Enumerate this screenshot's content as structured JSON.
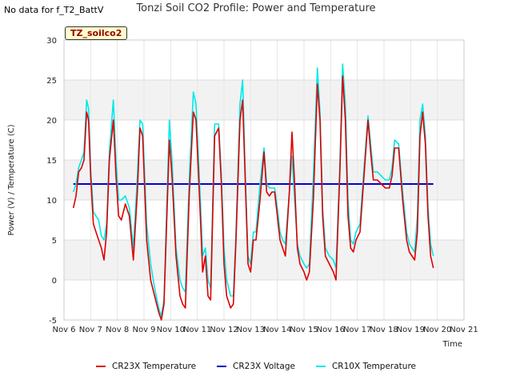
{
  "note": "No data for f_T2_BattV",
  "chart_data": {
    "type": "line",
    "title": "Tonzi Soil CO2 Profile: Power and Temperature",
    "xlabel": "Time",
    "ylabel": "Power (V) / Temperature (C)",
    "site_label": "TZ_soilco2",
    "xlim": [
      6,
      21
    ],
    "ylim": [
      -5,
      30
    ],
    "yticks": [
      -5,
      0,
      5,
      10,
      15,
      20,
      25,
      30
    ],
    "xticks": [
      {
        "v": 6,
        "label": "Nov 6"
      },
      {
        "v": 7,
        "label": "Nov 7"
      },
      {
        "v": 8,
        "label": "Nov 8"
      },
      {
        "v": 9,
        "label": "Nov 9"
      },
      {
        "v": 10,
        "label": "Nov 10"
      },
      {
        "v": 11,
        "label": "Nov 11"
      },
      {
        "v": 12,
        "label": "Nov 12"
      },
      {
        "v": 13,
        "label": "Nov 13"
      },
      {
        "v": 14,
        "label": "Nov 14"
      },
      {
        "v": 15,
        "label": "Nov 15"
      },
      {
        "v": 16,
        "label": "Nov 16"
      },
      {
        "v": 17,
        "label": "Nov 17"
      },
      {
        "v": 18,
        "label": "Nov 18"
      },
      {
        "v": 19,
        "label": "Nov 19"
      },
      {
        "v": 20,
        "label": "Nov 20"
      },
      {
        "v": 21,
        "label": "Nov 21"
      }
    ],
    "grid": true,
    "legend_position": "bottom",
    "series": [
      {
        "name": "CR23X Temperature",
        "color": "#dd0000",
        "points": [
          [
            6.35,
            9.0
          ],
          [
            6.45,
            10.5
          ],
          [
            6.55,
            13.5
          ],
          [
            6.65,
            14.0
          ],
          [
            6.75,
            15.0
          ],
          [
            6.85,
            21.0
          ],
          [
            6.92,
            20.0
          ],
          [
            7.0,
            13.0
          ],
          [
            7.1,
            7.0
          ],
          [
            7.2,
            6.0
          ],
          [
            7.3,
            5.0
          ],
          [
            7.4,
            4.0
          ],
          [
            7.5,
            2.5
          ],
          [
            7.6,
            6.0
          ],
          [
            7.7,
            15.0
          ],
          [
            7.85,
            20.0
          ],
          [
            7.95,
            13.0
          ],
          [
            8.05,
            8.0
          ],
          [
            8.15,
            7.5
          ],
          [
            8.3,
            9.5
          ],
          [
            8.45,
            8.0
          ],
          [
            8.6,
            2.5
          ],
          [
            8.75,
            11.0
          ],
          [
            8.85,
            19.0
          ],
          [
            8.95,
            18.0
          ],
          [
            9.1,
            5.0
          ],
          [
            9.25,
            0.0
          ],
          [
            9.4,
            -2.0
          ],
          [
            9.55,
            -4.0
          ],
          [
            9.65,
            -5.0
          ],
          [
            9.75,
            -3.0
          ],
          [
            9.95,
            17.5
          ],
          [
            10.05,
            13.0
          ],
          [
            10.2,
            3.0
          ],
          [
            10.35,
            -2.0
          ],
          [
            10.45,
            -3.0
          ],
          [
            10.55,
            -3.5
          ],
          [
            10.7,
            11.0
          ],
          [
            10.85,
            21.0
          ],
          [
            10.95,
            20.0
          ],
          [
            11.1,
            9.0
          ],
          [
            11.2,
            1.0
          ],
          [
            11.3,
            3.0
          ],
          [
            11.4,
            -2.0
          ],
          [
            11.5,
            -2.5
          ],
          [
            11.65,
            18.0
          ],
          [
            11.8,
            19.0
          ],
          [
            11.9,
            12.0
          ],
          [
            12.0,
            2.0
          ],
          [
            12.1,
            -2.0
          ],
          [
            12.25,
            -3.5
          ],
          [
            12.35,
            -3.0
          ],
          [
            12.45,
            5.0
          ],
          [
            12.6,
            20.0
          ],
          [
            12.7,
            22.5
          ],
          [
            12.8,
            12.0
          ],
          [
            12.9,
            2.0
          ],
          [
            13.0,
            1.0
          ],
          [
            13.1,
            5.0
          ],
          [
            13.2,
            5.0
          ],
          [
            13.35,
            10.0
          ],
          [
            13.5,
            16.0
          ],
          [
            13.6,
            11.0
          ],
          [
            13.7,
            10.5
          ],
          [
            13.8,
            11.0
          ],
          [
            13.9,
            11.0
          ],
          [
            14.0,
            8.0
          ],
          [
            14.1,
            5.0
          ],
          [
            14.2,
            4.0
          ],
          [
            14.3,
            3.0
          ],
          [
            14.45,
            11.0
          ],
          [
            14.55,
            18.5
          ],
          [
            14.65,
            12.0
          ],
          [
            14.75,
            4.0
          ],
          [
            14.85,
            2.0
          ],
          [
            15.0,
            1.0
          ],
          [
            15.1,
            0.0
          ],
          [
            15.2,
            1.0
          ],
          [
            15.35,
            10.0
          ],
          [
            15.5,
            24.5
          ],
          [
            15.6,
            20.0
          ],
          [
            15.7,
            8.0
          ],
          [
            15.8,
            3.0
          ],
          [
            15.95,
            2.0
          ],
          [
            16.1,
            1.0
          ],
          [
            16.2,
            0.0
          ],
          [
            16.35,
            14.0
          ],
          [
            16.45,
            25.5
          ],
          [
            16.55,
            20.0
          ],
          [
            16.65,
            8.0
          ],
          [
            16.75,
            4.0
          ],
          [
            16.85,
            3.5
          ],
          [
            16.95,
            5.0
          ],
          [
            17.1,
            6.0
          ],
          [
            17.25,
            13.0
          ],
          [
            17.4,
            20.0
          ],
          [
            17.5,
            16.0
          ],
          [
            17.6,
            12.5
          ],
          [
            17.75,
            12.5
          ],
          [
            17.9,
            12.0
          ],
          [
            18.05,
            11.5
          ],
          [
            18.2,
            11.5
          ],
          [
            18.3,
            13.0
          ],
          [
            18.4,
            16.5
          ],
          [
            18.55,
            16.5
          ],
          [
            18.7,
            10.0
          ],
          [
            18.85,
            5.0
          ],
          [
            18.95,
            3.5
          ],
          [
            19.05,
            3.0
          ],
          [
            19.15,
            2.5
          ],
          [
            19.25,
            6.0
          ],
          [
            19.35,
            18.0
          ],
          [
            19.45,
            21.0
          ],
          [
            19.55,
            17.0
          ],
          [
            19.65,
            8.0
          ],
          [
            19.75,
            3.0
          ],
          [
            19.85,
            1.5
          ]
        ]
      },
      {
        "name": "CR23X Voltage",
        "color": "#0000cc",
        "points": [
          [
            6.35,
            12.0
          ],
          [
            19.85,
            12.0
          ]
        ]
      },
      {
        "name": "CR10X Temperature",
        "color": "#00e8e8",
        "points": [
          [
            6.35,
            11.0
          ],
          [
            6.45,
            12.0
          ],
          [
            6.55,
            14.0
          ],
          [
            6.65,
            15.0
          ],
          [
            6.75,
            16.0
          ],
          [
            6.85,
            22.5
          ],
          [
            6.92,
            21.5
          ],
          [
            7.0,
            14.0
          ],
          [
            7.1,
            8.5
          ],
          [
            7.2,
            8.0
          ],
          [
            7.3,
            7.5
          ],
          [
            7.4,
            5.5
          ],
          [
            7.5,
            5.0
          ],
          [
            7.6,
            7.0
          ],
          [
            7.7,
            16.0
          ],
          [
            7.85,
            22.5
          ],
          [
            7.95,
            15.0
          ],
          [
            8.05,
            10.0
          ],
          [
            8.15,
            10.0
          ],
          [
            8.3,
            10.5
          ],
          [
            8.45,
            9.0
          ],
          [
            8.6,
            4.0
          ],
          [
            8.75,
            13.0
          ],
          [
            8.85,
            20.0
          ],
          [
            8.95,
            19.5
          ],
          [
            9.1,
            7.0
          ],
          [
            9.25,
            2.0
          ],
          [
            9.4,
            -1.0
          ],
          [
            9.55,
            -3.5
          ],
          [
            9.65,
            -4.5
          ],
          [
            9.75,
            -2.5
          ],
          [
            9.95,
            20.0
          ],
          [
            10.05,
            15.0
          ],
          [
            10.2,
            4.0
          ],
          [
            10.35,
            0.0
          ],
          [
            10.45,
            -1.0
          ],
          [
            10.55,
            -1.5
          ],
          [
            10.7,
            13.0
          ],
          [
            10.85,
            23.5
          ],
          [
            10.95,
            22.0
          ],
          [
            11.1,
            11.0
          ],
          [
            11.2,
            3.0
          ],
          [
            11.3,
            4.0
          ],
          [
            11.4,
            0.0
          ],
          [
            11.5,
            -1.0
          ],
          [
            11.65,
            19.5
          ],
          [
            11.8,
            19.5
          ],
          [
            11.9,
            13.0
          ],
          [
            12.0,
            4.0
          ],
          [
            12.1,
            0.0
          ],
          [
            12.25,
            -2.0
          ],
          [
            12.35,
            -2.0
          ],
          [
            12.45,
            6.0
          ],
          [
            12.6,
            22.0
          ],
          [
            12.7,
            25.0
          ],
          [
            12.8,
            13.0
          ],
          [
            12.9,
            3.0
          ],
          [
            13.0,
            2.0
          ],
          [
            13.1,
            6.0
          ],
          [
            13.2,
            6.0
          ],
          [
            13.35,
            12.0
          ],
          [
            13.5,
            16.5
          ],
          [
            13.6,
            12.0
          ],
          [
            13.7,
            11.5
          ],
          [
            13.8,
            11.5
          ],
          [
            13.9,
            11.5
          ],
          [
            14.0,
            9.0
          ],
          [
            14.1,
            6.0
          ],
          [
            14.2,
            5.0
          ],
          [
            14.3,
            4.5
          ],
          [
            14.45,
            11.0
          ],
          [
            14.55,
            15.5
          ],
          [
            14.65,
            10.0
          ],
          [
            14.75,
            4.5
          ],
          [
            14.85,
            3.0
          ],
          [
            15.0,
            2.0
          ],
          [
            15.1,
            1.5
          ],
          [
            15.2,
            2.0
          ],
          [
            15.35,
            13.0
          ],
          [
            15.5,
            26.5
          ],
          [
            15.6,
            21.0
          ],
          [
            15.7,
            9.0
          ],
          [
            15.8,
            4.0
          ],
          [
            15.95,
            3.0
          ],
          [
            16.1,
            2.5
          ],
          [
            16.2,
            1.5
          ],
          [
            16.35,
            15.0
          ],
          [
            16.45,
            27.0
          ],
          [
            16.55,
            22.0
          ],
          [
            16.65,
            10.0
          ],
          [
            16.75,
            5.0
          ],
          [
            16.85,
            4.5
          ],
          [
            16.95,
            6.0
          ],
          [
            17.1,
            7.0
          ],
          [
            17.25,
            14.0
          ],
          [
            17.4,
            20.5
          ],
          [
            17.5,
            17.0
          ],
          [
            17.6,
            13.5
          ],
          [
            17.75,
            13.5
          ],
          [
            17.9,
            13.0
          ],
          [
            18.05,
            12.5
          ],
          [
            18.2,
            12.5
          ],
          [
            18.3,
            14.0
          ],
          [
            18.4,
            17.5
          ],
          [
            18.55,
            17.0
          ],
          [
            18.7,
            11.0
          ],
          [
            18.85,
            6.0
          ],
          [
            18.95,
            4.5
          ],
          [
            19.05,
            4.0
          ],
          [
            19.15,
            3.5
          ],
          [
            19.25,
            8.0
          ],
          [
            19.35,
            20.0
          ],
          [
            19.45,
            22.0
          ],
          [
            19.55,
            18.0
          ],
          [
            19.65,
            9.0
          ],
          [
            19.75,
            4.5
          ],
          [
            19.85,
            3.0
          ]
        ]
      }
    ]
  }
}
